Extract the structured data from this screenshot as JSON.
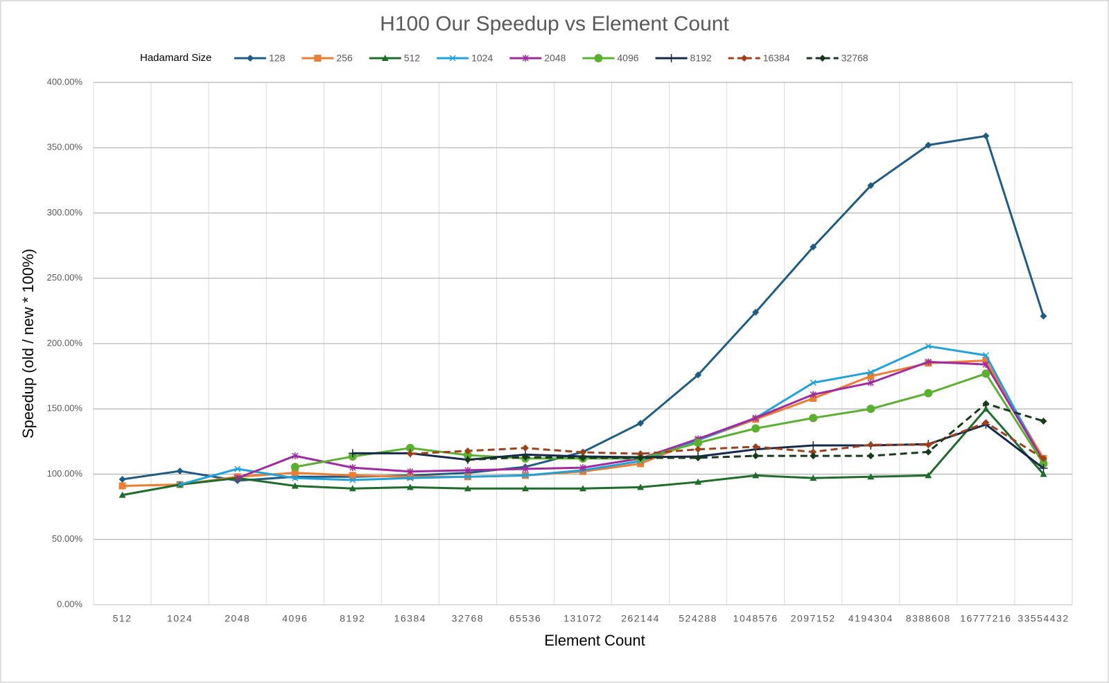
{
  "chart_data": {
    "type": "line",
    "title": "H100 Our Speedup vs Element Count",
    "x_label": "Element Count",
    "y_label": "Speedup (old / new * 100%)",
    "legend_title": "Hadamard Size",
    "legend": "top",
    "grid": true,
    "categories": [
      "512",
      "1024",
      "2048",
      "4096",
      "8192",
      "16384",
      "32768",
      "65536",
      "131072",
      "262144",
      "524288",
      "1048576",
      "2097152",
      "4194304",
      "8388608",
      "16777216",
      "33554432"
    ],
    "ylim": [
      0,
      400
    ],
    "yticks": [
      {
        "value": 0,
        "label": "0.00%"
      },
      {
        "value": 50,
        "label": "50.00%"
      },
      {
        "value": 100,
        "label": "100.00%"
      },
      {
        "value": 150,
        "label": "150.00%"
      },
      {
        "value": 200,
        "label": "200.00%"
      },
      {
        "value": 250,
        "label": "250.00%"
      },
      {
        "value": 300,
        "label": "300.00%"
      },
      {
        "value": 350,
        "label": "350.00%"
      },
      {
        "value": 400,
        "label": "400.00%"
      }
    ],
    "series": [
      {
        "name": "128",
        "color": "#1f5c85",
        "marker": "diamond",
        "dashed": false,
        "values": [
          96,
          102.4,
          95,
          98,
          98,
          99,
          101,
          105.6,
          117,
          139,
          176,
          224,
          274,
          321,
          352,
          359,
          221
        ]
      },
      {
        "name": "256",
        "color": "#ed7d31",
        "marker": "square",
        "dashed": false,
        "values": [
          91,
          92,
          98,
          101,
          99,
          98,
          98,
          99,
          102,
          108,
          126,
          142,
          158,
          175,
          185,
          187,
          112
        ]
      },
      {
        "name": "512",
        "color": "#1e6b2a",
        "marker": "triangle",
        "dashed": false,
        "values": [
          84,
          92,
          97,
          91,
          89,
          90,
          89,
          89,
          89,
          90,
          94,
          99,
          97,
          98,
          99,
          150,
          100
        ]
      },
      {
        "name": "1024",
        "color": "#1fa2dc",
        "marker": "x",
        "dashed": false,
        "values": [
          null,
          92,
          104,
          97,
          95.5,
          97,
          98,
          99,
          103,
          110,
          126,
          143,
          170,
          178,
          198,
          191,
          109
        ]
      },
      {
        "name": "2048",
        "color": "#a02ba0",
        "marker": "star",
        "dashed": false,
        "values": [
          null,
          null,
          97,
          114,
          105,
          102,
          103,
          104,
          105,
          112,
          127,
          143,
          161,
          170,
          186,
          184,
          110
        ]
      },
      {
        "name": "4096",
        "color": "#5bb030",
        "marker": "circle",
        "dashed": false,
        "values": [
          null,
          null,
          null,
          105.5,
          113.5,
          120,
          114.6,
          112,
          112,
          112,
          124,
          135,
          143,
          150,
          162,
          177,
          108
        ]
      },
      {
        "name": "8192",
        "color": "#14284b",
        "marker": "plus",
        "dashed": false,
        "values": [
          null,
          null,
          null,
          null,
          116,
          116,
          111,
          115,
          113.5,
          113,
          113.5,
          119,
          122,
          122,
          123,
          138,
          104.5
        ]
      },
      {
        "name": "16384",
        "color": "#a0401a",
        "marker": "diamond",
        "dashed": true,
        "values": [
          null,
          null,
          null,
          null,
          null,
          115.6,
          117.8,
          120,
          116.7,
          115.6,
          119,
          121,
          117,
          122.5,
          122.5,
          139.5,
          112
        ]
      },
      {
        "name": "32768",
        "color": "#163a1a",
        "marker": "diamond",
        "dashed": true,
        "values": [
          null,
          null,
          null,
          null,
          null,
          null,
          111,
          113,
          112.5,
          112.5,
          112.5,
          114,
          114,
          114,
          117,
          154,
          140.6
        ]
      }
    ]
  }
}
